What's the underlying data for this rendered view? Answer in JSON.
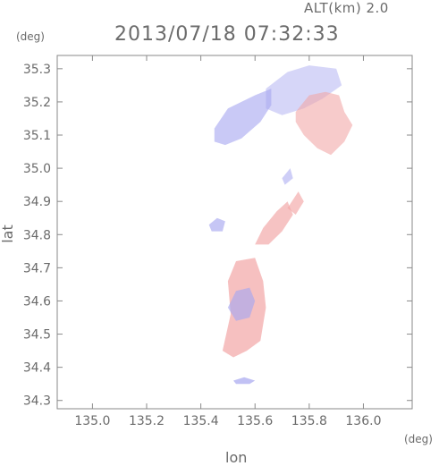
{
  "header": {
    "altitude": "ALT(km) 2.0",
    "timestamp": "2013/07/18 07:32:33"
  },
  "colors": {
    "positive": "#f2a6a6",
    "negative": "#a8a8f0",
    "axis": "#8a8a8a",
    "text": "#6b6b6b"
  },
  "chart_data": {
    "type": "heatmap",
    "xlabel": "lon",
    "ylabel": "lat",
    "x_unit": "(deg)",
    "y_unit": "(deg)",
    "xlim": [
      134.87,
      136.18
    ],
    "ylim": [
      34.275,
      35.34
    ],
    "xticks": [
      135.0,
      135.2,
      135.4,
      135.6,
      135.8,
      136.0
    ],
    "xtick_labels": [
      "135.0",
      "135.2",
      "135.4",
      "135.6",
      "135.8",
      "136.0"
    ],
    "yticks": [
      34.3,
      34.4,
      34.5,
      34.6,
      34.7,
      34.8,
      34.9,
      35.0,
      35.1,
      35.2,
      35.3
    ],
    "ytick_labels": [
      "34.3",
      "34.4",
      "34.5",
      "34.6",
      "34.7",
      "34.8",
      "34.9",
      "35.0",
      "35.1",
      "35.2",
      "35.3"
    ],
    "regions": [
      {
        "sign": "negative",
        "intensity": 0.45,
        "points": [
          [
            135.45,
            35.12
          ],
          [
            135.5,
            35.18
          ],
          [
            135.6,
            35.22
          ],
          [
            135.66,
            35.24
          ],
          [
            135.66,
            35.19
          ],
          [
            135.62,
            35.14
          ],
          [
            135.55,
            35.09
          ],
          [
            135.49,
            35.07
          ],
          [
            135.45,
            35.08
          ]
        ]
      },
      {
        "sign": "negative",
        "intensity": 0.2,
        "points": [
          [
            135.64,
            35.24
          ],
          [
            135.72,
            35.29
          ],
          [
            135.8,
            35.31
          ],
          [
            135.9,
            35.3
          ],
          [
            135.92,
            35.25
          ],
          [
            135.85,
            35.21
          ],
          [
            135.78,
            35.18
          ],
          [
            135.7,
            35.16
          ],
          [
            135.64,
            35.18
          ]
        ]
      },
      {
        "sign": "positive",
        "intensity": 0.4,
        "points": [
          [
            135.75,
            35.17
          ],
          [
            135.8,
            35.22
          ],
          [
            135.86,
            35.23
          ],
          [
            135.91,
            35.22
          ],
          [
            135.93,
            35.17
          ],
          [
            135.96,
            35.13
          ],
          [
            135.93,
            35.08
          ],
          [
            135.88,
            35.04
          ],
          [
            135.83,
            35.06
          ],
          [
            135.78,
            35.1
          ],
          [
            135.75,
            35.14
          ]
        ]
      },
      {
        "sign": "negative",
        "intensity": 0.5,
        "points": [
          [
            135.43,
            34.83
          ],
          [
            135.46,
            34.85
          ],
          [
            135.49,
            34.84
          ],
          [
            135.48,
            34.81
          ],
          [
            135.44,
            34.81
          ]
        ]
      },
      {
        "sign": "positive",
        "intensity": 0.6,
        "points": [
          [
            135.48,
            34.45
          ],
          [
            135.51,
            34.56
          ],
          [
            135.5,
            34.66
          ],
          [
            135.53,
            34.72
          ],
          [
            135.6,
            34.73
          ],
          [
            135.63,
            34.66
          ],
          [
            135.64,
            34.58
          ],
          [
            135.62,
            34.48
          ],
          [
            135.57,
            34.45
          ],
          [
            135.52,
            34.43
          ]
        ]
      },
      {
        "sign": "negative",
        "intensity": 0.5,
        "points": [
          [
            135.5,
            34.58
          ],
          [
            135.53,
            34.63
          ],
          [
            135.58,
            34.64
          ],
          [
            135.6,
            34.6
          ],
          [
            135.58,
            34.55
          ],
          [
            135.53,
            34.54
          ]
        ]
      },
      {
        "sign": "positive",
        "intensity": 0.55,
        "points": [
          [
            135.6,
            34.77
          ],
          [
            135.63,
            34.82
          ],
          [
            135.68,
            34.87
          ],
          [
            135.72,
            34.9
          ],
          [
            135.74,
            34.86
          ],
          [
            135.7,
            34.81
          ],
          [
            135.65,
            34.77
          ]
        ]
      },
      {
        "sign": "positive",
        "intensity": 0.5,
        "points": [
          [
            135.72,
            34.88
          ],
          [
            135.76,
            34.93
          ],
          [
            135.78,
            34.9
          ],
          [
            135.75,
            34.86
          ]
        ]
      },
      {
        "sign": "negative",
        "intensity": 0.35,
        "points": [
          [
            135.7,
            34.97
          ],
          [
            135.73,
            35.0
          ],
          [
            135.74,
            34.97
          ],
          [
            135.71,
            34.95
          ]
        ]
      },
      {
        "sign": "negative",
        "intensity": 0.6,
        "points": [
          [
            135.52,
            34.36
          ],
          [
            135.56,
            34.37
          ],
          [
            135.6,
            34.36
          ],
          [
            135.58,
            34.35
          ],
          [
            135.53,
            34.35
          ]
        ]
      }
    ]
  }
}
